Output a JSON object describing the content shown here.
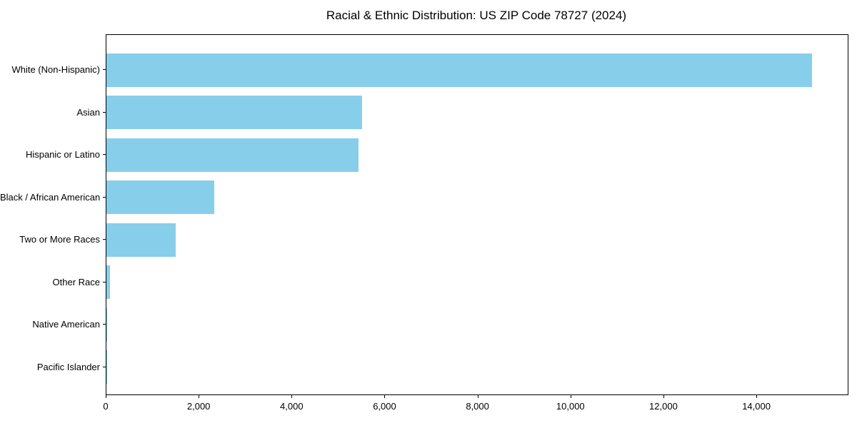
{
  "page": {
    "background_color": "#ffffff",
    "text_color": "#000000"
  },
  "chart_data": {
    "type": "bar",
    "orientation": "horizontal",
    "title": "Racial & Ethnic Distribution: US ZIP Code 78727 (2024)",
    "categories": [
      "White (Non-Hispanic)",
      "Asian",
      "Hispanic or Latino",
      "Black / African American",
      "Two or More Races",
      "Other Race",
      "Native American",
      "Pacific Islander"
    ],
    "values": [
      15180,
      5500,
      5425,
      2320,
      1485,
      80,
      20,
      5
    ],
    "xlabel": "",
    "ylabel": "",
    "xlim": [
      0,
      15950
    ],
    "xticks": [
      0,
      2000,
      4000,
      6000,
      8000,
      10000,
      12000,
      14000
    ],
    "xtick_labels": [
      "0",
      "2,000",
      "4,000",
      "6,000",
      "8,000",
      "10,000",
      "12,000",
      "14,000"
    ],
    "bar_color": "#87ceeb",
    "frame_color": "#000000",
    "grid": false,
    "legend_position": "none"
  }
}
